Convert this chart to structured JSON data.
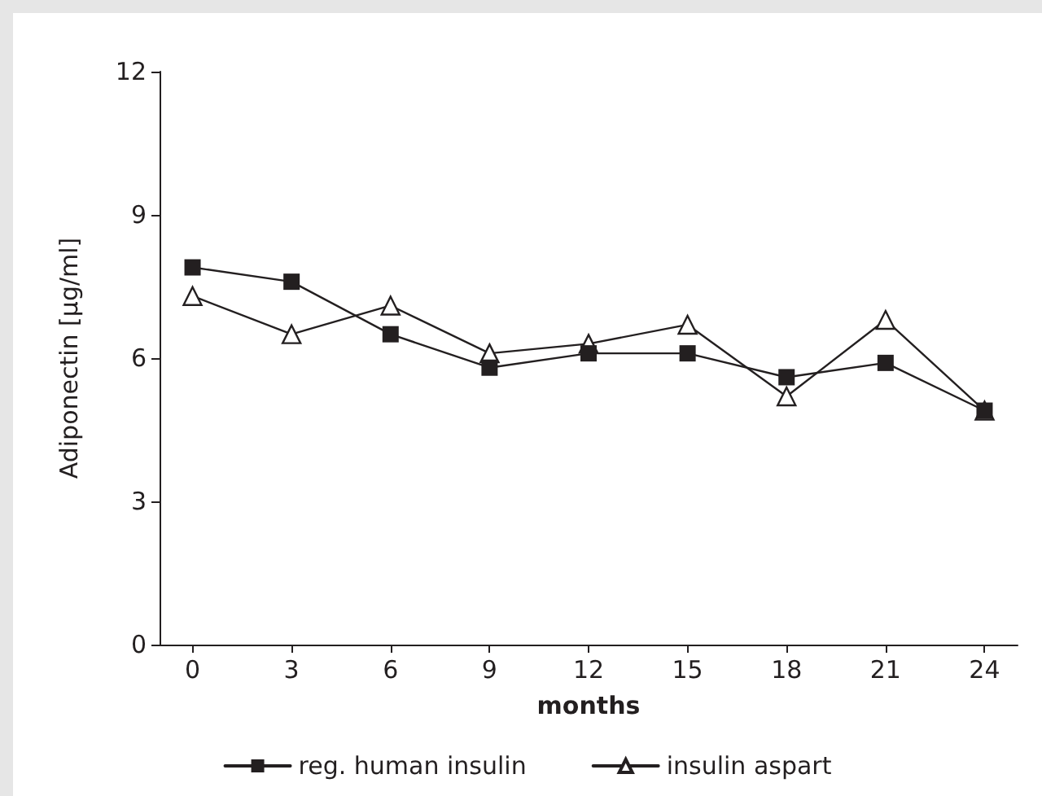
{
  "chart_data": {
    "type": "line",
    "xlabel": "months",
    "ylabel": "Adiponectin [µg/ml]",
    "x": [
      0,
      3,
      6,
      9,
      12,
      15,
      18,
      21,
      24
    ],
    "xlim": [
      -1,
      25
    ],
    "xticks": [
      0,
      3,
      6,
      9,
      12,
      15,
      18,
      21,
      24
    ],
    "ylim": [
      0,
      12
    ],
    "yticks": [
      0,
      3,
      6,
      9,
      12
    ],
    "series": [
      {
        "name": "reg. human insulin",
        "color": "#231f20",
        "marker": "square",
        "values": [
          7.9,
          7.6,
          6.5,
          5.8,
          6.1,
          6.1,
          5.6,
          5.9,
          4.9
        ]
      },
      {
        "name": "insulin aspart",
        "color": "#231f20",
        "marker": "triangle",
        "values": [
          7.3,
          6.5,
          7.1,
          6.1,
          6.3,
          6.7,
          5.2,
          6.8,
          4.9
        ]
      }
    ],
    "grid": false,
    "legend": "bottom",
    "line_style": "solid"
  }
}
